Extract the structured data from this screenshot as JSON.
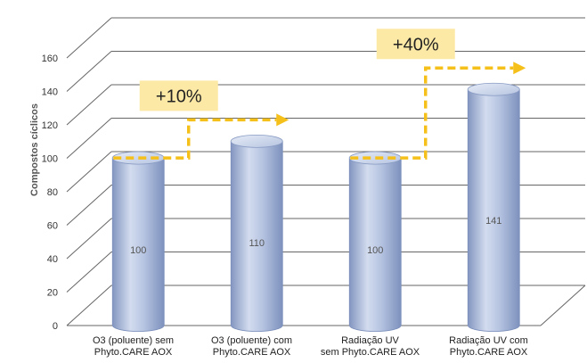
{
  "chart_data": {
    "type": "bar",
    "title": "",
    "xlabel": "",
    "ylabel": "Compostos cíclicos",
    "ylim": [
      0,
      160
    ],
    "yticks": [
      0,
      20,
      40,
      60,
      80,
      100,
      120,
      140,
      160
    ],
    "grid": true,
    "categories": [
      [
        "O3 (poluente) sem",
        "Phyto.CARE AOX"
      ],
      [
        "O3 (poluente) com",
        "Phyto.CARE AOX"
      ],
      [
        "Radiação UV",
        "sem Phyto.CARE AOX"
      ],
      [
        "Radiação UV com",
        "Phyto.CARE AOX"
      ]
    ],
    "values": [
      100,
      110,
      100,
      141
    ],
    "data_labels": [
      "100",
      "110",
      "100",
      "141"
    ],
    "annotations": [
      {
        "text": "+10%",
        "from_category": 0,
        "to_category": 1
      },
      {
        "text": "+40%",
        "from_category": 2,
        "to_category": 3
      }
    ],
    "colors": {
      "bar_light": "#d8e0f0",
      "bar_mid": "#a9b9d9",
      "bar_dark": "#7f93bd",
      "callout_fill": "#fde9a6",
      "arrow": "#f6c01a",
      "grid": "#555555"
    }
  }
}
